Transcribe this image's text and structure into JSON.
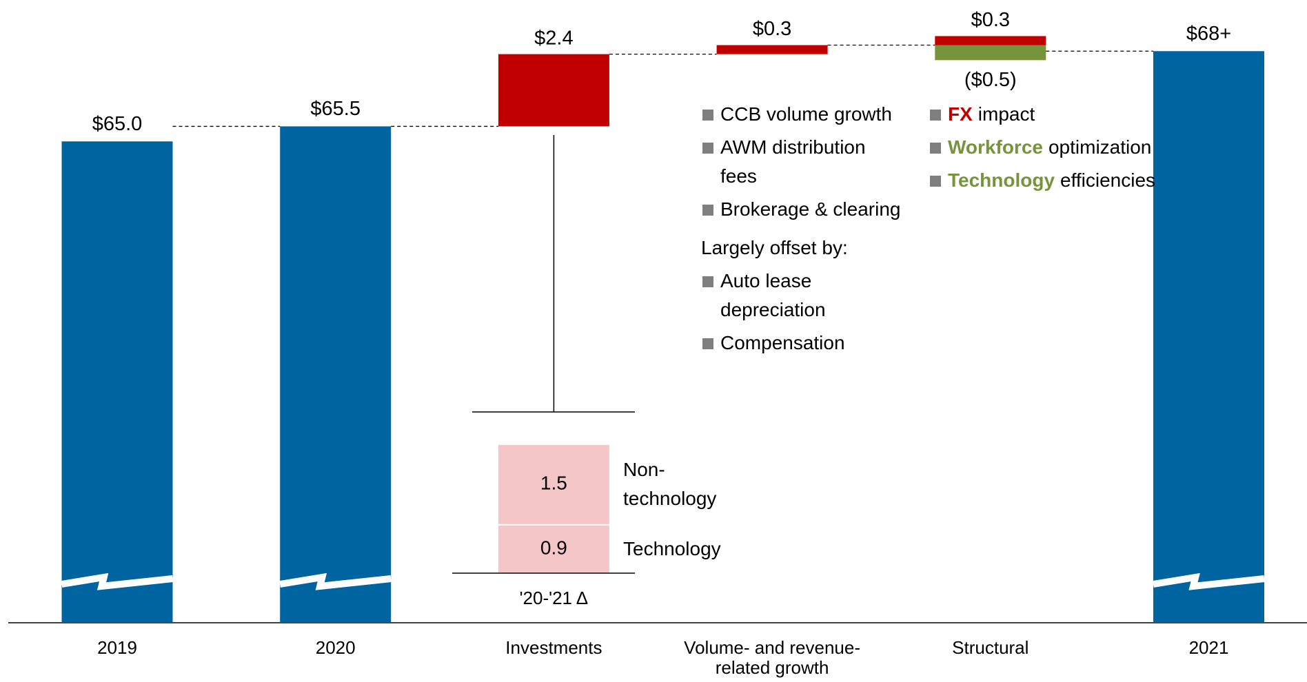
{
  "chart_data": {
    "type": "waterfall",
    "categories": [
      "2019",
      "2020",
      "Investments",
      "Volume- and revenue-related growth",
      "Structural",
      "2021"
    ],
    "series": [
      {
        "color": "#0064a0",
        "values": [
          65.0,
          65.5,
          null,
          null,
          null,
          68
        ],
        "value_labels": [
          "$65.0",
          "$65.5",
          null,
          null,
          null,
          "$68+"
        ]
      },
      {
        "color": "#c00000",
        "values": [
          null,
          null,
          2.4,
          0.3,
          0.3,
          null
        ],
        "value_labels": [
          null,
          null,
          "$2.4",
          "$0.3",
          "$0.3",
          null
        ]
      },
      {
        "color": "#77933c",
        "values": [
          null,
          null,
          null,
          null,
          -0.5,
          null
        ],
        "value_labels": [
          null,
          null,
          null,
          null,
          "($0.5)",
          null
        ]
      }
    ],
    "ylim": [
      49,
      69.7
    ],
    "inset": {
      "title": "'20-'21 Δ",
      "categories": [
        "Technology",
        "Non-technology"
      ],
      "values": [
        0.9,
        1.5
      ],
      "color": "#f5c6c7"
    },
    "volume_notes": {
      "items": [
        "CCB volume growth",
        "AWM distribution fees",
        "Brokerage & clearing"
      ],
      "offset_heading": "Largely offset by:",
      "offset_items": [
        "Auto lease depreciation",
        "Compensation"
      ]
    },
    "structural_notes": [
      {
        "bold": "FX",
        "color": "#c00000",
        "text": "impact"
      },
      {
        "bold": "Workforce",
        "color": "#77933c",
        "text": "optimization"
      },
      {
        "bold": "Technology",
        "color": "#77933c",
        "text": "efficiencies"
      }
    ]
  }
}
